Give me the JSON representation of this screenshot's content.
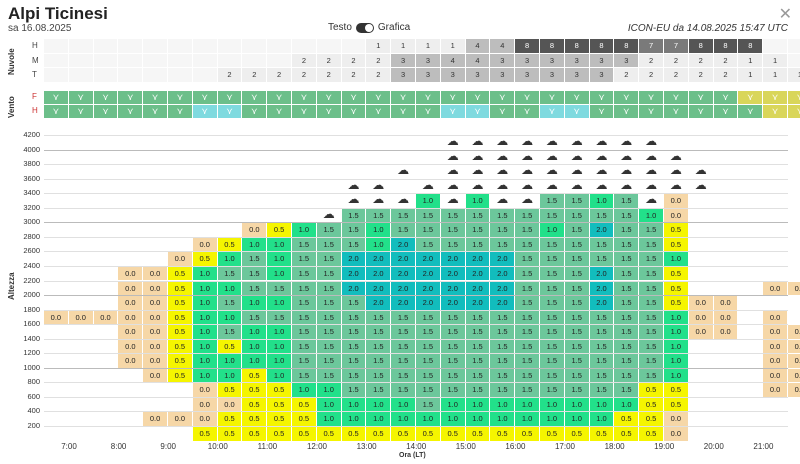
{
  "header": {
    "title": "Alpi Ticinesi",
    "date": "sa 16.08.2025",
    "toggle_left": "Testo",
    "toggle_right": "Grafica",
    "model": "ICON-EU da 14.08.2025 15:47 UTC",
    "close_icon": "close-icon"
  },
  "clouds": {
    "label": "Nuvole",
    "rows": [
      {
        "name": "H",
        "values": [
          "",
          "",
          "",
          "",
          "",
          "",
          "",
          "",
          "",
          "",
          "",
          "",
          "",
          "1",
          "1",
          "1",
          "1",
          "4",
          "4",
          "8",
          "8",
          "8",
          "8",
          "8",
          "7",
          "7",
          "8",
          "8",
          "8",
          "",
          "",
          "8"
        ]
      },
      {
        "name": "M",
        "values": [
          "",
          "",
          "",
          "",
          "",
          "",
          "",
          "",
          "",
          "",
          "2",
          "2",
          "2",
          "2",
          "3",
          "3",
          "4",
          "4",
          "3",
          "3",
          "3",
          "3",
          "3",
          "3",
          "2",
          "2",
          "2",
          "2",
          "1",
          "1",
          "",
          ""
        ]
      },
      {
        "name": "T",
        "values": [
          "",
          "",
          "",
          "",
          "",
          "",
          "",
          "2",
          "2",
          "2",
          "2",
          "2",
          "2",
          "2",
          "3",
          "3",
          "3",
          "3",
          "3",
          "3",
          "3",
          "3",
          "3",
          "2",
          "2",
          "2",
          "2",
          "2",
          "1",
          "1",
          "1",
          "1"
        ]
      }
    ]
  },
  "wind": {
    "label": "Vento",
    "rows": [
      {
        "name": "F",
        "colors": [
          "g",
          "g",
          "g",
          "g",
          "g",
          "g",
          "g",
          "g",
          "g",
          "g",
          "g",
          "g",
          "g",
          "g",
          "g",
          "g",
          "g",
          "g",
          "g",
          "g",
          "g",
          "g",
          "g",
          "g",
          "g",
          "g",
          "g",
          "g",
          "y",
          "y",
          "y",
          "y"
        ]
      },
      {
        "name": "H",
        "colors": [
          "g",
          "g",
          "g",
          "g",
          "g",
          "g",
          "c",
          "c",
          "g",
          "g",
          "g",
          "g",
          "g",
          "g",
          "g",
          "g",
          "c",
          "c",
          "g",
          "g",
          "c",
          "c",
          "g",
          "g",
          "g",
          "g",
          "g",
          "g",
          "g",
          "y",
          "y",
          "y"
        ]
      }
    ]
  },
  "altitude": {
    "ylabel": "Altezza",
    "xlabel": "Ora (LT)",
    "levels": [
      "4200",
      "4000",
      "3800",
      "3600",
      "3400",
      "3200",
      "3000",
      "2800",
      "2600",
      "2400",
      "2200",
      "2000",
      "1800",
      "1600",
      "1400",
      "1200",
      "1000",
      "800",
      "600",
      "400",
      "200"
    ],
    "times": [
      "7:00",
      "8:00",
      "9:00",
      "10:00",
      "11:00",
      "12:00",
      "13:00",
      "14:00",
      "15:00",
      "16:00",
      "17:00",
      "18:00",
      "19:00",
      "20:00",
      "21:00"
    ],
    "grid": [
      [
        "",
        "",
        "",
        "",
        "",
        "",
        "",
        "",
        "",
        "",
        "",
        "",
        "",
        "",
        "",
        "",
        "c",
        "c",
        "c",
        "c",
        "c",
        "c",
        "c",
        "c",
        "c",
        "",
        "",
        "",
        "",
        "",
        ""
      ],
      [
        "",
        "",
        "",
        "",
        "",
        "",
        "",
        "",
        "",
        "",
        "",
        "",
        "",
        "",
        "",
        "",
        "c",
        "c",
        "c",
        "c",
        "c",
        "c",
        "c",
        "c",
        "c",
        "c",
        "",
        "",
        "",
        "",
        ""
      ],
      [
        "",
        "",
        "",
        "",
        "",
        "",
        "",
        "",
        "",
        "",
        "",
        "",
        "",
        "",
        "c",
        "",
        "c",
        "c",
        "c",
        "c",
        "c",
        "c",
        "c",
        "c",
        "c",
        "c",
        "c",
        "",
        "",
        "",
        ""
      ],
      [
        "",
        "",
        "",
        "",
        "",
        "",
        "",
        "",
        "",
        "",
        "",
        "",
        "c",
        "c",
        "",
        "c",
        "c",
        "c",
        "c",
        "c",
        "c",
        "c",
        "c",
        "c",
        "c",
        "c",
        "c",
        "",
        "",
        "",
        ""
      ],
      [
        "",
        "",
        "",
        "",
        "",
        "",
        "",
        "",
        "",
        "",
        "",
        "",
        "c",
        "c",
        "c",
        "1.0",
        "c",
        "1.0",
        "c",
        "c",
        "1.5",
        "1.5",
        "1.0",
        "1.5",
        "c",
        "0.0",
        "",
        "",
        "",
        "",
        ""
      ],
      [
        "",
        "",
        "",
        "",
        "",
        "",
        "",
        "",
        "",
        "",
        "",
        "c",
        "1.5",
        "1.5",
        "1.5",
        "1.5",
        "1.5",
        "1.5",
        "1.5",
        "1.5",
        "1.5",
        "1.5",
        "1.5",
        "1.5",
        "1.0",
        "0.0",
        "",
        "",
        "",
        "",
        ""
      ],
      [
        "",
        "",
        "",
        "",
        "",
        "",
        "",
        "",
        "0.0",
        "0.5",
        "1.0",
        "1.5",
        "1.5",
        "1.0",
        "1.5",
        "1.5",
        "1.5",
        "1.5",
        "1.5",
        "1.5",
        "1.0",
        "1.5",
        "2.0",
        "1.5",
        "1.5",
        "0.5",
        "",
        "",
        "",
        "",
        ""
      ],
      [
        "",
        "",
        "",
        "",
        "",
        "",
        "0.0",
        "0.5",
        "1.0",
        "1.0",
        "1.5",
        "1.5",
        "1.5",
        "1.0",
        "2.0",
        "1.5",
        "1.5",
        "1.5",
        "1.5",
        "1.5",
        "1.5",
        "1.5",
        "1.5",
        "1.5",
        "1.5",
        "0.5",
        "",
        "",
        "",
        "",
        ""
      ],
      [
        "",
        "",
        "",
        "",
        "",
        "0.0",
        "0.5",
        "1.0",
        "1.5",
        "1.0",
        "1.5",
        "1.5",
        "2.0",
        "2.0",
        "2.0",
        "2.0",
        "2.0",
        "2.0",
        "2.0",
        "1.5",
        "1.5",
        "1.5",
        "1.5",
        "1.5",
        "1.5",
        "1.0",
        "",
        "",
        "",
        "",
        ""
      ],
      [
        "",
        "",
        "",
        "0.0",
        "0.0",
        "0.5",
        "1.0",
        "1.5",
        "1.5",
        "1.0",
        "1.5",
        "1.5",
        "2.0",
        "2.0",
        "2.0",
        "2.0",
        "2.0",
        "2.0",
        "2.0",
        "1.5",
        "1.5",
        "1.5",
        "2.0",
        "1.5",
        "1.5",
        "0.5",
        "",
        "",
        "",
        "",
        ""
      ],
      [
        "",
        "",
        "",
        "0.0",
        "0.0",
        "0.5",
        "1.0",
        "1.0",
        "1.5",
        "1.5",
        "1.5",
        "1.5",
        "2.0",
        "2.0",
        "2.0",
        "2.0",
        "2.0",
        "2.0",
        "2.0",
        "1.5",
        "1.5",
        "1.5",
        "2.0",
        "1.5",
        "1.5",
        "0.5",
        "",
        "",
        "",
        "0.0",
        "0.0"
      ],
      [
        "",
        "",
        "",
        "0.0",
        "0.0",
        "0.5",
        "1.0",
        "1.5",
        "1.0",
        "1.0",
        "1.5",
        "1.5",
        "1.5",
        "2.0",
        "2.0",
        "2.0",
        "2.0",
        "2.0",
        "2.0",
        "1.5",
        "1.5",
        "1.5",
        "2.0",
        "1.5",
        "1.5",
        "0.5",
        "0.0",
        "0.0",
        "",
        "",
        ""
      ],
      [
        "0.0",
        "0.0",
        "0.0",
        "0.0",
        "0.0",
        "0.5",
        "1.0",
        "1.0",
        "1.5",
        "1.5",
        "1.5",
        "1.5",
        "1.5",
        "1.5",
        "1.5",
        "1.5",
        "1.5",
        "1.5",
        "1.5",
        "1.5",
        "1.5",
        "1.5",
        "1.5",
        "1.5",
        "1.5",
        "1.0",
        "0.0",
        "0.0",
        "",
        "0.0",
        ""
      ],
      [
        "",
        "",
        "",
        "0.0",
        "0.0",
        "0.5",
        "1.0",
        "1.5",
        "1.0",
        "1.0",
        "1.5",
        "1.5",
        "1.5",
        "1.5",
        "1.5",
        "1.5",
        "1.5",
        "1.5",
        "1.5",
        "1.5",
        "1.5",
        "1.5",
        "1.5",
        "1.5",
        "1.5",
        "1.0",
        "0.0",
        "0.0",
        "",
        "0.0",
        "0.0"
      ],
      [
        "",
        "",
        "",
        "0.0",
        "0.0",
        "0.5",
        "1.0",
        "0.5",
        "1.0",
        "1.0",
        "1.5",
        "1.5",
        "1.5",
        "1.5",
        "1.5",
        "1.5",
        "1.5",
        "1.5",
        "1.5",
        "1.5",
        "1.5",
        "1.5",
        "1.5",
        "1.5",
        "1.5",
        "1.0",
        "",
        "",
        "",
        "0.0",
        "0.0"
      ],
      [
        "",
        "",
        "",
        "0.0",
        "0.0",
        "0.5",
        "1.0",
        "1.0",
        "1.0",
        "1.0",
        "1.5",
        "1.5",
        "1.5",
        "1.5",
        "1.5",
        "1.5",
        "1.5",
        "1.5",
        "1.5",
        "1.5",
        "1.5",
        "1.5",
        "1.5",
        "1.5",
        "1.5",
        "1.0",
        "",
        "",
        "",
        "0.0",
        "0.0"
      ],
      [
        "",
        "",
        "",
        "",
        "0.0",
        "0.5",
        "1.0",
        "1.0",
        "0.5",
        "1.0",
        "1.5",
        "1.5",
        "1.5",
        "1.5",
        "1.5",
        "1.5",
        "1.5",
        "1.5",
        "1.5",
        "1.5",
        "1.5",
        "1.5",
        "1.5",
        "1.5",
        "1.5",
        "1.0",
        "",
        "",
        "",
        "0.0",
        "0.0"
      ],
      [
        "",
        "",
        "",
        "",
        "",
        "",
        "0.0",
        "0.5",
        "0.5",
        "0.5",
        "1.0",
        "1.0",
        "1.5",
        "1.5",
        "1.5",
        "1.5",
        "1.5",
        "1.5",
        "1.5",
        "1.5",
        "1.5",
        "1.5",
        "1.5",
        "1.5",
        "0.5",
        "0.5",
        "",
        "",
        "",
        "0.0",
        "0.0"
      ],
      [
        "",
        "",
        "",
        "",
        "",
        "",
        "0.0",
        "0.0",
        "0.5",
        "0.5",
        "0.5",
        "1.0",
        "1.0",
        "1.0",
        "1.0",
        "1.5",
        "1.0",
        "1.0",
        "1.0",
        "1.0",
        "1.0",
        "1.0",
        "1.0",
        "1.0",
        "0.5",
        "0.5",
        "",
        "",
        "",
        "",
        ""
      ],
      [
        "",
        "",
        "",
        "",
        "0.0",
        "0.0",
        "0.0",
        "0.5",
        "0.5",
        "0.5",
        "0.5",
        "1.0",
        "1.0",
        "1.0",
        "1.0",
        "1.0",
        "1.0",
        "1.0",
        "1.0",
        "1.0",
        "1.0",
        "1.0",
        "1.0",
        "0.5",
        "0.5",
        "0.0",
        "",
        "",
        "",
        "",
        ""
      ],
      [
        "",
        "",
        "",
        "",
        "",
        "",
        "0.5",
        "0.5",
        "0.5",
        "0.5",
        "0.5",
        "0.5",
        "0.5",
        "0.5",
        "0.5",
        "0.5",
        "0.5",
        "0.5",
        "0.5",
        "0.5",
        "0.5",
        "0.5",
        "0.5",
        "0.5",
        "0.5",
        "0.0",
        "",
        "",
        "",
        "",
        ""
      ]
    ]
  },
  "colors": {
    "c00": "#f6d7a7",
    "c05": "#f5f500",
    "c10": "#22e08a",
    "c15": "#6cc79b",
    "c20": "#12bdbd",
    "wind_g": "#6cbf8a",
    "wind_c": "#7fdadf",
    "wind_y": "#d9d65a",
    "cloud_low": "#eeeeee",
    "cloud_mid": "#bdbdbd",
    "cloud_high": "#7a7a7a",
    "cloud_max": "#555555"
  }
}
